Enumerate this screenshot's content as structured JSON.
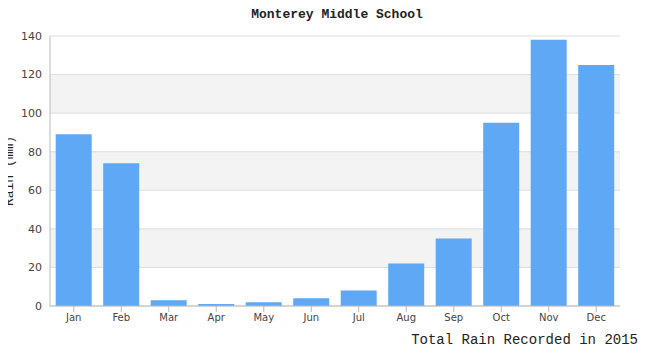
{
  "chart_data": {
    "type": "bar",
    "title": "Monterey Middle School",
    "x_label": "Total Rain Recorded in 2015",
    "y_label": "Rain (mm)",
    "categories": [
      "Jan",
      "Feb",
      "Mar",
      "Apr",
      "May",
      "Jun",
      "Jul",
      "Aug",
      "Sep",
      "Oct",
      "Nov",
      "Dec"
    ],
    "values": [
      89,
      74,
      3,
      1,
      2,
      4,
      8,
      22,
      35,
      95,
      138,
      125
    ],
    "color": "#5ea8f5",
    "ylim": [
      0,
      140
    ],
    "yticks": [
      0,
      20,
      40,
      60,
      80,
      100,
      120,
      140
    ],
    "grid": true
  }
}
